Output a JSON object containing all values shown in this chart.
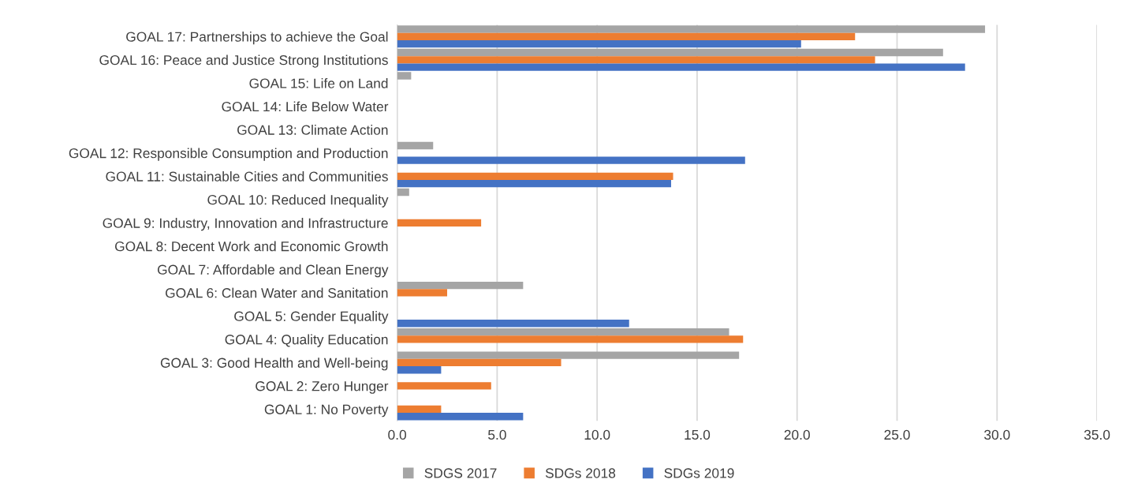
{
  "chart_data": {
    "type": "bar",
    "orientation": "horizontal",
    "categories": [
      "GOAL 17: Partnerships to achieve the Goal",
      "GOAL 16: Peace and Justice Strong Institutions",
      "GOAL 15: Life on Land",
      "GOAL 14: Life Below Water",
      "GOAL 13: Climate Action",
      "GOAL 12: Responsible Consumption and Production",
      "GOAL 11: Sustainable Cities and Communities",
      "GOAL 10: Reduced Inequality",
      "GOAL 9: Industry, Innovation and Infrastructure",
      "GOAL 8: Decent Work and Economic Growth",
      "GOAL 7: Affordable and Clean Energy",
      "GOAL 6: Clean Water and Sanitation",
      "GOAL 5: Gender Equality",
      "GOAL 4: Quality Education",
      "GOAL 3: Good Health and Well-being",
      "GOAL 2: Zero Hunger",
      "GOAL 1: No Poverty"
    ],
    "series": [
      {
        "name": "SDGS 2017",
        "color": "#a5a5a5",
        "values": [
          29.4,
          27.3,
          0.7,
          0,
          0,
          1.8,
          0,
          0.6,
          0,
          0,
          0,
          6.3,
          0,
          16.6,
          17.1,
          0,
          0
        ]
      },
      {
        "name": "SDGs 2018",
        "color": "#ed7d31",
        "values": [
          22.9,
          23.9,
          0,
          0,
          0,
          0,
          13.8,
          0,
          4.2,
          0,
          0,
          2.5,
          0,
          17.3,
          8.2,
          4.7,
          2.2
        ]
      },
      {
        "name": "SDGs 2019",
        "color": "#4472c4",
        "values": [
          20.2,
          28.4,
          0,
          0,
          0,
          17.4,
          13.7,
          0,
          0,
          0,
          0,
          0,
          11.6,
          0,
          2.2,
          0,
          6.3
        ]
      }
    ],
    "xlim": [
      0,
      35
    ],
    "xticks": [
      {
        "value": 0,
        "label": "0.0"
      },
      {
        "value": 5,
        "label": "5.0"
      },
      {
        "value": 10,
        "label": "10.0"
      },
      {
        "value": 15,
        "label": "15.0"
      },
      {
        "value": 20,
        "label": "20.0"
      },
      {
        "value": 25,
        "label": "25.0"
      },
      {
        "value": 30,
        "label": "30.0"
      },
      {
        "value": 35,
        "label": "35.0"
      }
    ],
    "grid": "x",
    "legend": "bottom"
  }
}
